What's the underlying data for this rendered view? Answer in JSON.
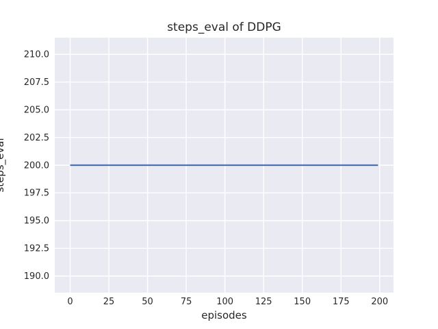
{
  "chart_data": {
    "type": "line",
    "title": "steps_eval of DDPG",
    "xlabel": "episodes",
    "ylabel": "steps_eval",
    "x_ticks": [
      0,
      25,
      50,
      75,
      100,
      125,
      150,
      175,
      200
    ],
    "x_tick_labels": [
      "0",
      "25",
      "50",
      "75",
      "100",
      "125",
      "150",
      "175",
      "200"
    ],
    "y_ticks": [
      190.0,
      192.5,
      195.0,
      197.5,
      200.0,
      202.5,
      205.0,
      207.5,
      210.0
    ],
    "y_tick_labels": [
      "190.0",
      "192.5",
      "195.0",
      "197.5",
      "200.0",
      "202.5",
      "205.0",
      "207.5",
      "210.0"
    ],
    "xlim": [
      -9.95,
      208.95
    ],
    "ylim": [
      188.5,
      211.5
    ],
    "grid": true,
    "legend": "none",
    "series": [
      {
        "name": "steps_eval (DDPG)",
        "color": "#4c72b0",
        "x": [
          0,
          199
        ],
        "y": [
          200.0,
          200.0
        ],
        "note": "constant value 200.0 across all episodes 0 to 199"
      }
    ],
    "style": {
      "figure_background": "#ffffff",
      "axes_background": "#eaeaf2",
      "grid_color": "#ffffff",
      "text_color": "#262626",
      "line_color": "#4c72b0"
    }
  }
}
